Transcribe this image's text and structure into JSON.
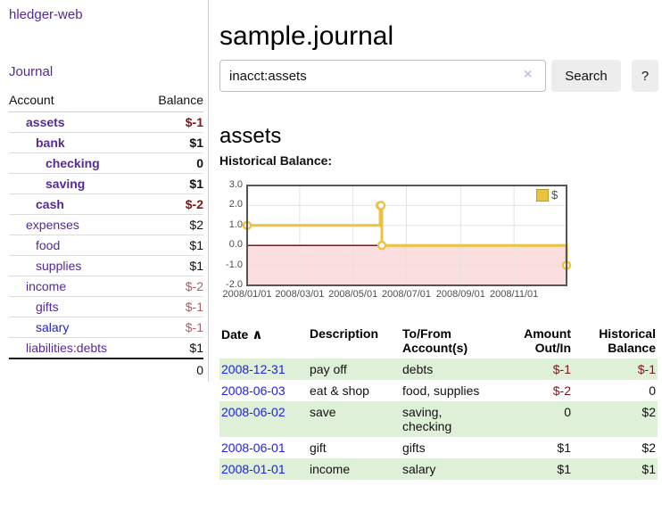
{
  "colors": {
    "purple": "#552a97",
    "blue": "#2222d8",
    "neg_strong": "#801515",
    "neg_soft": "#aa5f5f",
    "text": "#111111",
    "gold": "#edc240",
    "pink": "#fbdede",
    "zero": "#8f0d0d",
    "grid": "#e3e3e3",
    "chart_border": "#545454",
    "row_green": "#dff0d8"
  },
  "brand": {
    "label": "hledger-web"
  },
  "nav": {
    "journal": "Journal"
  },
  "sidebar": {
    "header": {
      "account": "Account",
      "balance": "Balance"
    },
    "accounts": [
      {
        "label": "assets",
        "depth": 1,
        "bold": true,
        "link": "purple",
        "balance": "$-1",
        "bal_color": "neg_strong",
        "bal_bold": true
      },
      {
        "label": "bank",
        "depth": 2,
        "bold": true,
        "link": "purple",
        "balance": "$1",
        "bal_color": "text",
        "bal_bold": true
      },
      {
        "label": "checking",
        "depth": 3,
        "bold": true,
        "link": "purple",
        "balance": "0",
        "bal_color": "text",
        "bal_bold": true
      },
      {
        "label": "saving",
        "depth": 3,
        "bold": true,
        "link": "purple",
        "balance": "$1",
        "bal_color": "text",
        "bal_bold": true
      },
      {
        "label": "cash",
        "depth": 2,
        "bold": true,
        "link": "purple",
        "balance": "$-2",
        "bal_color": "neg_strong",
        "bal_bold": true
      },
      {
        "label": "expenses",
        "depth": 1,
        "bold": false,
        "link": "purple",
        "balance": "$2",
        "bal_color": "text",
        "bal_bold": false
      },
      {
        "label": "food",
        "depth": 2,
        "bold": false,
        "link": "purple",
        "balance": "$1",
        "bal_color": "text",
        "bal_bold": false
      },
      {
        "label": "supplies",
        "depth": 2,
        "bold": false,
        "link": "purple",
        "balance": "$1",
        "bal_color": "text",
        "bal_bold": false
      },
      {
        "label": "income",
        "depth": 1,
        "bold": false,
        "link": "purple",
        "balance": "$-2",
        "bal_color": "neg_soft",
        "bal_bold": false
      },
      {
        "label": "gifts",
        "depth": 2,
        "bold": false,
        "link": "purple",
        "balance": "$-1",
        "bal_color": "neg_soft",
        "bal_bold": false
      },
      {
        "label": "salary",
        "depth": 2,
        "bold": false,
        "link": "blue",
        "balance": "$-1",
        "bal_color": "neg_soft",
        "bal_bold": false
      },
      {
        "label": "liabilities:debts",
        "depth": 1,
        "bold": false,
        "link": "purple",
        "balance": "$1",
        "bal_color": "text",
        "bal_bold": false
      }
    ],
    "total": "0"
  },
  "main": {
    "title": "sample.journal",
    "search": {
      "value": "inacct:assets",
      "clear_icon": "×",
      "button": "Search",
      "help": "?"
    },
    "account_heading": "assets",
    "section_label": "Historical Balance:"
  },
  "chart_data": {
    "type": "line",
    "step": true,
    "title": "Historical Balance of assets",
    "x_range": [
      "2008-01-01",
      "2008-12-31"
    ],
    "ylim": [
      -2,
      3
    ],
    "series": [
      {
        "name": "$",
        "color": "#edc240",
        "points": [
          [
            "2008-01-01",
            1
          ],
          [
            "2008-06-01",
            2
          ],
          [
            "2008-06-02",
            2
          ],
          [
            "2008-06-03",
            0
          ],
          [
            "2008-12-31",
            -1
          ]
        ]
      }
    ],
    "yticks": [
      {
        "label": "3.0",
        "value": 3
      },
      {
        "label": "2.0",
        "value": 2
      },
      {
        "label": "1.0",
        "value": 1
      },
      {
        "label": "0.0",
        "value": 0
      },
      {
        "label": "-1.0",
        "value": -1
      },
      {
        "label": "-2.0",
        "value": -2
      }
    ],
    "xticks": [
      {
        "label": "2008/01/01",
        "date": "2008-01-01"
      },
      {
        "label": "2008/03/01",
        "date": "2008-03-01"
      },
      {
        "label": "2008/05/01",
        "date": "2008-05-01"
      },
      {
        "label": "2008/07/01",
        "date": "2008-07-01"
      },
      {
        "label": "2008/09/01",
        "date": "2008-09-01"
      },
      {
        "label": "2008/11/01",
        "date": "2008-11-01"
      }
    ],
    "legend": {
      "label": "$",
      "position": "top-right"
    },
    "negative_region_fill": "#fbdede",
    "zero_line_color": "#8f0d0d",
    "grid": true
  },
  "register": {
    "headers": {
      "date": "Date",
      "description": "Description",
      "accounts": "To/From Account(s)",
      "amount": "Amount Out/In",
      "balance": "Historical Balance"
    },
    "sort_icon": "∧",
    "rows": [
      {
        "date": "2008-12-31",
        "description": "pay off",
        "accounts": "debts",
        "amount": "$-1",
        "amount_neg": true,
        "balance": "$-1",
        "balance_neg": true,
        "shaded": true
      },
      {
        "date": "2008-06-03",
        "description": "eat & shop",
        "accounts": "food, supplies",
        "amount": "$-2",
        "amount_neg": true,
        "balance": "0",
        "balance_neg": false,
        "shaded": false
      },
      {
        "date": "2008-06-02",
        "description": "save",
        "accounts": "saving, checking",
        "amount": "0",
        "amount_neg": false,
        "balance": "$2",
        "balance_neg": false,
        "shaded": true
      },
      {
        "date": "2008-06-01",
        "description": "gift",
        "accounts": "gifts",
        "amount": "$1",
        "amount_neg": false,
        "balance": "$2",
        "balance_neg": false,
        "shaded": false
      },
      {
        "date": "2008-01-01",
        "description": "income",
        "accounts": "salary",
        "amount": "$1",
        "amount_neg": false,
        "balance": "$1",
        "balance_neg": false,
        "shaded": true
      }
    ]
  }
}
